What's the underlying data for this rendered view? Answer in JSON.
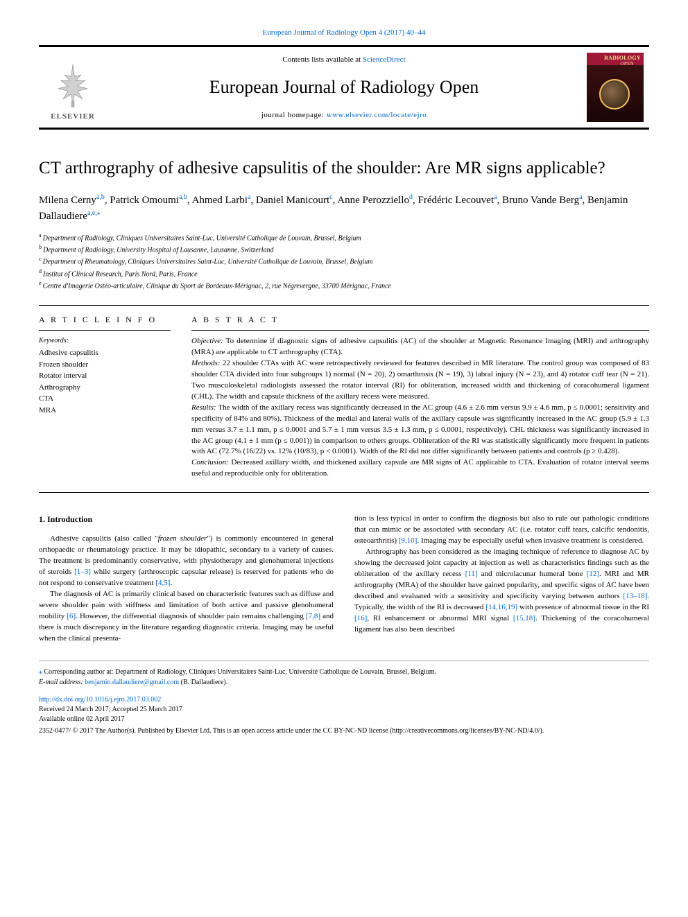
{
  "journal_top_link": "European Journal of Radiology Open 4 (2017) 40–44",
  "header": {
    "contents_prefix": "Contents lists available at ",
    "contents_link": "ScienceDirect",
    "journal_title": "European Journal of Radiology Open",
    "homepage_prefix": "journal homepage: ",
    "homepage_link": "www.elsevier.com/locate/ejro",
    "elsevier": "ELSEVIER"
  },
  "article": {
    "title": "CT arthrography of adhesive capsulitis of the shoulder: Are MR signs applicable?",
    "authors_html": "Milena Cerny<sup class='aff'>a,b</sup>, Patrick Omoumi<sup class='aff'>a,b</sup>, Ahmed Larbi<sup class='aff'>a</sup>, Daniel Manicourt<sup class='aff'>c</sup>, Anne Perozziello<sup class='aff'>d</sup>, Frédéric Lecouvet<sup class='aff'>a</sup>, Bruno Vande Berg<sup class='aff'>a</sup>, Benjamin Dallaudiere<sup class='aff'>a,e,</sup><sup class='aff'>⁎</sup>",
    "affiliations": [
      {
        "sup": "a",
        "text": "Department of Radiology, Cliniques Universitaires Saint-Luc, Université Catholique de Louvain, Brussel, Belgium"
      },
      {
        "sup": "b",
        "text": "Department of Radiology, University Hospital of Lausanne, Lausanne, Switzerland"
      },
      {
        "sup": "c",
        "text": "Department of Rheumatology, Cliniques Universitaires Saint-Luc, Université Catholique de Louvain, Brussel, Belgium"
      },
      {
        "sup": "d",
        "text": "Institut of Clinical Research, Paris Nord, Paris, France"
      },
      {
        "sup": "e",
        "text": "Centre d'Imagerie Ostéo-articulaire, Clinique du Sport de Bordeaux-Mérignac, 2, rue Négrevergne, 33700 Mérignac, France"
      }
    ]
  },
  "info": {
    "heading": "A R T I C L E   I N F O",
    "keywords_label": "Keywords:",
    "keywords": [
      "Adhesive capsulitis",
      "Frozen shoulder",
      "Rotator interval",
      "Arthrography",
      "CTA",
      "MRA"
    ]
  },
  "abstract": {
    "heading": "A B S T R A C T",
    "objective_label": "Objective:",
    "objective": "To determine if diagnostic signs of adhesive capsulitis (AC) of the shoulder at Magnetic Resonance Imaging (MRI) and arthrography (MRA) are applicable to CT arthrography (CTA).",
    "methods_label": "Methods:",
    "methods": "22 shoulder CTAs with AC were retrospectively reviewed for features described in MR literature. The control group was composed of 83 shoulder CTA divided into four subgroups 1) normal (N = 20), 2) omarthrosis (N = 19), 3) labral injury (N = 23), and 4) rotator cuff tear (N = 21). Two musculoskeletal radiologists assessed the rotator interval (RI) for obliteration, increased width and thickening of coracohumeral ligament (CHL). The width and capsule thickness of the axillary recess were measured.",
    "results_label": "Results:",
    "results": "The width of the axillary recess was significantly decreased in the AC group (4.6 ± 2.6 mm versus 9.9 ± 4.6 mm, p ≤ 0.0001; sensitivity and specificity of 84% and 80%). Thickness of the medial and lateral walls of the axillary capsule was significantly increased in the AC group (5.9 ± 1.3 mm versus 3.7 ± 1.1 mm, p ≤ 0.0001 and 5.7 ± 1 mm versus 3.5 ± 1.3 mm, p ≤ 0.0001, respectively). CHL thickness was significantly increased in the AC group (4.1 ± 1 mm (p ≤ 0.001)) in comparison to others groups. Obliteration of the RI was statistically significantly more frequent in patients with AC (72.7% (16/22) vs. 12% (10/83), p < 0.0001). Width of the RI did not differ significantly between patients and controls (p ≥ 0.428).",
    "conclusion_label": "Conclusion:",
    "conclusion": "Decreased axillary width, and thickened axillary capsule are MR signs of AC applicable to CTA. Evaluation of rotator interval seems useful and reproducible only for obliteration."
  },
  "body": {
    "intro_heading": "1. Introduction",
    "col1_p1_html": "Adhesive capsulitis (also called \"<em>frozen shoulder</em>\") is commonly encountered in general orthopaedic or rheumatology practice. It may be idiopathic, secondary to a variety of causes. The treatment is predominantly conservative, with physiotherapy and glenohumeral injections of steroids <span class='ref'>[1–3]</span> while surgery (arthroscopic capsular release) is reserved for patients who do not respond to conservative treatment <span class='ref'>[4,5]</span>.",
    "col1_p2_html": "The diagnosis of AC is primarily clinical based on characteristic features such as diffuse and severe shoulder pain with stiffness and limitation of both active and passive glenohumeral mobility <span class='ref'>[6]</span>. However, the differential diagnosis of shoulder pain remains challenging <span class='ref'>[7,8]</span> and there is much discrepancy in the literature regarding diagnostic criteria. Imaging may be useful when the clinical presenta-",
    "col2_p1_html": "tion is less typical in order to confirm the diagnosis but also to rule out pathologic conditions that can mimic or be associated with secondary AC (i.e. rotator cuff tears, calcific tendonitis, osteoarthritis) <span class='ref'>[9,10]</span>. Imaging may be especially useful when invasive treatment is considered.",
    "col2_p2_html": "Arthrography has been considered as the imaging technique of reference to diagnose AC by showing the decreased joint capacity at injection as well as characteristics findings such as the obliteration of the axillary recess <span class='ref'>[11]</span> and microlacunar humeral bone <span class='ref'>[12]</span>. MRI and MR arthrography (MRA) of the shoulder have gained popularity, and specific signs of AC have been described and evaluated with a sensitivity and specificity varying between authors <span class='ref'>[13–18]</span>. Typically, the width of the RI is decreased <span class='ref'>[14,16,19]</span> with presence of abnormal tissue in the RI <span class='ref'>[16]</span>, RI enhancement or abnormal MRI signal <span class='ref'>[15,18]</span>. Thickening of the coracohumeral ligament has also been described"
  },
  "footnotes": {
    "corr": "Corresponding author at: Department of Radiology, Cliniques Universitaires Saint-Luc, Université Catholique de Louvain, Brussel, Belgium.",
    "email_label": "E-mail address:",
    "email": "benjamin.dallaudiere@gmail.com",
    "email_paren": "(B. Dallaudiere).",
    "doi": "http://dx.doi.org/10.1016/j.ejro.2017.03.002",
    "received": "Received 24 March 2017; Accepted 25 March 2017",
    "available": "Available online 02 April 2017",
    "license": "2352-0477/ © 2017 The Author(s). Published by Elsevier Ltd. This is an open access article under the CC BY-NC-ND license (http://creativecommons.org/licenses/BY-NC-ND/4.0/)."
  }
}
